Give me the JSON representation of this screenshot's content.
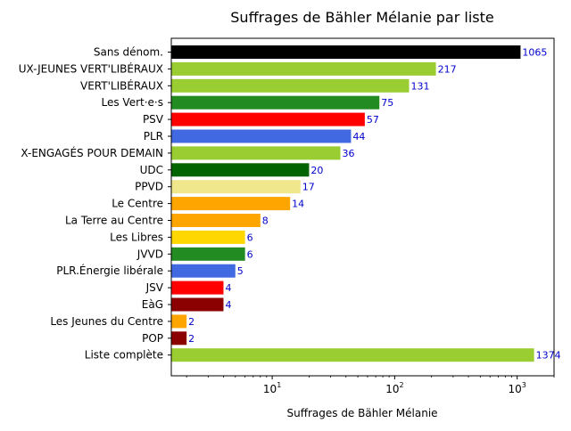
{
  "chart_data": {
    "type": "bar",
    "orientation": "horizontal",
    "title": "Suffrages de Bähler Mélanie par liste",
    "xlabel": "Suffrages de Bähler Mélanie",
    "ylabel": "",
    "x_scale": "log",
    "xlim": [
      1.5,
      2000
    ],
    "x_ticks": [
      {
        "value": 10,
        "base": "10",
        "exp": "1"
      },
      {
        "value": 100,
        "base": "10",
        "exp": "2"
      },
      {
        "value": 1000,
        "base": "10",
        "exp": "3"
      }
    ],
    "grid": false,
    "bars": [
      {
        "category": "Sans dénom.",
        "value": 1065,
        "label": "1065",
        "color": "#000000"
      },
      {
        "category": "UX-JEUNES VERT'LIBÉRAUX",
        "value": 217,
        "label": "217",
        "color": "#9acd32"
      },
      {
        "category": "VERT'LIBÉRAUX",
        "value": 131,
        "label": "131",
        "color": "#9acd32"
      },
      {
        "category": "Les Vert·e·s",
        "value": 75,
        "label": "75",
        "color": "#228b22"
      },
      {
        "category": "PSV",
        "value": 57,
        "label": "57",
        "color": "#ff0000"
      },
      {
        "category": "PLR",
        "value": 44,
        "label": "44",
        "color": "#4169e1"
      },
      {
        "category": "X-ENGAGÉS POUR DEMAIN",
        "value": 36,
        "label": "36",
        "color": "#9acd32"
      },
      {
        "category": "UDC",
        "value": 20,
        "label": "20",
        "color": "#006400"
      },
      {
        "category": "PPVD",
        "value": 17,
        "label": "17",
        "color": "#f0e68c"
      },
      {
        "category": "Le Centre",
        "value": 14,
        "label": "14",
        "color": "#ffa500"
      },
      {
        "category": "La Terre au Centre",
        "value": 8,
        "label": "8",
        "color": "#ffa500"
      },
      {
        "category": "Les Libres",
        "value": 6,
        "label": "6",
        "color": "#ffd700"
      },
      {
        "category": "JVVD",
        "value": 6,
        "label": "6",
        "color": "#228b22"
      },
      {
        "category": "PLR.Énergie libérale",
        "value": 5,
        "label": "5",
        "color": "#4169e1"
      },
      {
        "category": "JSV",
        "value": 4,
        "label": "4",
        "color": "#ff0000"
      },
      {
        "category": "EàG",
        "value": 4,
        "label": "4",
        "color": "#8b0000"
      },
      {
        "category": "Les Jeunes du Centre",
        "value": 2,
        "label": "2",
        "color": "#ffa500"
      },
      {
        "category": "POP",
        "value": 2,
        "label": "2",
        "color": "#8b0000"
      },
      {
        "category": "Liste complète",
        "value": 1374,
        "label": "1374",
        "color": "#9acd32"
      }
    ]
  }
}
